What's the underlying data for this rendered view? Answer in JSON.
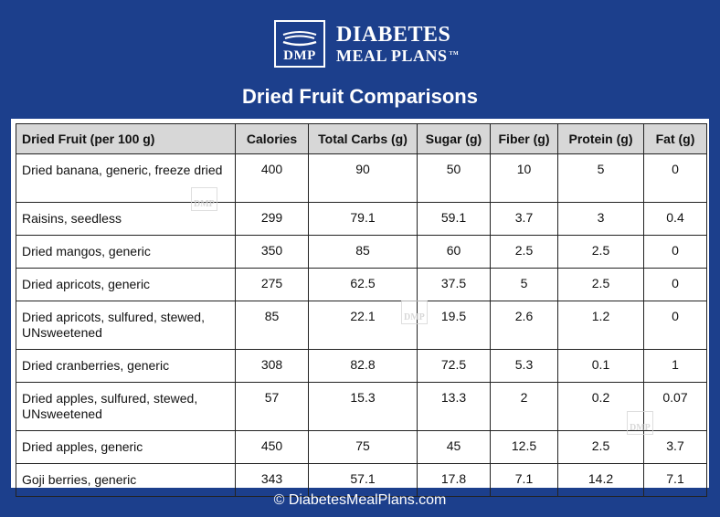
{
  "logo": {
    "badge": "DMP",
    "line1": "DIABETES",
    "line2": "MEAL PLANS",
    "tm": "TM"
  },
  "title": "Dried Fruit Comparisons",
  "table": {
    "headers": [
      "Dried Fruit (per 100 g)",
      "Calories",
      "Total Carbs (g)",
      "Sugar (g)",
      "Fiber (g)",
      "Protein (g)",
      "Fat (g)"
    ],
    "rows": [
      {
        "name": "Dried banana, generic, freeze dried",
        "calories": "400",
        "carbs": "90",
        "sugar": "50",
        "fiber": "10",
        "protein": "5",
        "fat": "0"
      },
      {
        "name": "Raisins, seedless",
        "calories": "299",
        "carbs": "79.1",
        "sugar": "59.1",
        "fiber": "3.7",
        "protein": "3",
        "fat": "0.4"
      },
      {
        "name": "Dried mangos, generic",
        "calories": "350",
        "carbs": "85",
        "sugar": "60",
        "fiber": "2.5",
        "protein": "2.5",
        "fat": "0"
      },
      {
        "name": "Dried apricots, generic",
        "calories": "275",
        "carbs": "62.5",
        "sugar": "37.5",
        "fiber": "5",
        "protein": "2.5",
        "fat": "0"
      },
      {
        "name": "Dried apricots, sulfured, stewed, UNsweetened",
        "calories": "85",
        "carbs": "22.1",
        "sugar": "19.5",
        "fiber": "2.6",
        "protein": "1.2",
        "fat": "0"
      },
      {
        "name": "Dried cranberries, generic",
        "calories": "308",
        "carbs": "82.8",
        "sugar": "72.5",
        "fiber": "5.3",
        "protein": "0.1",
        "fat": "1"
      },
      {
        "name": "Dried apples, sulfured, stewed, UNsweetened",
        "calories": "57",
        "carbs": "15.3",
        "sugar": "13.3",
        "fiber": "2",
        "protein": "0.2",
        "fat": "0.07"
      },
      {
        "name": "Dried apples, generic",
        "calories": "450",
        "carbs": "75",
        "sugar": "45",
        "fiber": "12.5",
        "protein": "2.5",
        "fat": "3.7"
      },
      {
        "name": "Goji berries, generic",
        "calories": "343",
        "carbs": "57.1",
        "sugar": "17.8",
        "fiber": "7.1",
        "protein": "14.2",
        "fat": "7.1"
      }
    ]
  },
  "watermark": "DMP",
  "footer": "© DiabetesMealPlans.com",
  "colors": {
    "background": "#1c3f8c",
    "header_fill": "#d7d7d7"
  }
}
